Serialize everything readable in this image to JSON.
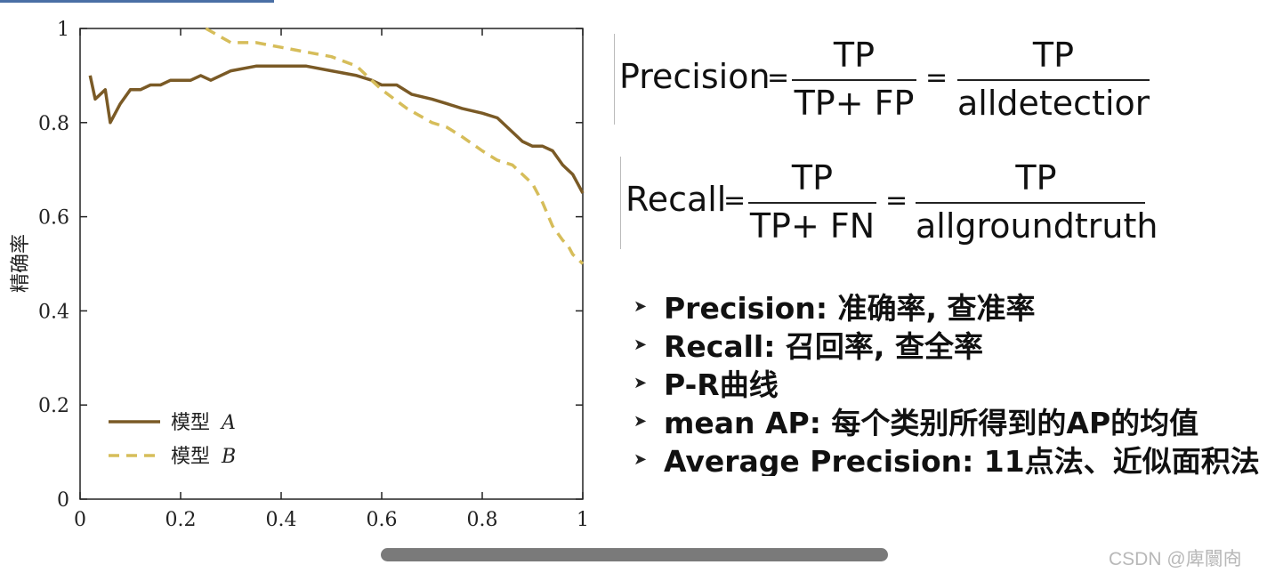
{
  "chart_data": {
    "type": "line",
    "xlabel": "",
    "ylabel": "精确率",
    "xlim": [
      0,
      1
    ],
    "ylim": [
      0,
      1
    ],
    "xticks": [
      "0",
      "0.2",
      "0.4",
      "0.6",
      "0.8",
      "1"
    ],
    "xtick_values": [
      0,
      0.2,
      0.4,
      0.6,
      0.8,
      1
    ],
    "yticks": [
      "0",
      "0.2",
      "0.4",
      "0.6",
      "0.8",
      "1"
    ],
    "ytick_values": [
      0,
      0.2,
      0.4,
      0.6,
      0.8,
      1
    ],
    "legend_position": "bottom-left",
    "series": [
      {
        "name": "模型 A",
        "style": "solid",
        "color": "#7a5a26",
        "x": [
          0.02,
          0.03,
          0.05,
          0.06,
          0.08,
          0.1,
          0.12,
          0.14,
          0.16,
          0.18,
          0.2,
          0.22,
          0.24,
          0.26,
          0.3,
          0.35,
          0.4,
          0.45,
          0.5,
          0.55,
          0.58,
          0.6,
          0.63,
          0.66,
          0.7,
          0.73,
          0.76,
          0.8,
          0.83,
          0.86,
          0.88,
          0.9,
          0.92,
          0.94,
          0.96,
          0.97,
          0.98,
          0.99,
          1.0
        ],
        "y": [
          0.9,
          0.85,
          0.87,
          0.8,
          0.84,
          0.87,
          0.87,
          0.88,
          0.88,
          0.89,
          0.89,
          0.89,
          0.9,
          0.89,
          0.91,
          0.92,
          0.92,
          0.92,
          0.91,
          0.9,
          0.89,
          0.88,
          0.88,
          0.86,
          0.85,
          0.84,
          0.83,
          0.82,
          0.81,
          0.78,
          0.76,
          0.75,
          0.75,
          0.74,
          0.71,
          0.7,
          0.69,
          0.67,
          0.65
        ]
      },
      {
        "name": "模型 B",
        "style": "dashed",
        "color": "#d6bd5a",
        "x": [
          0.25,
          0.3,
          0.35,
          0.4,
          0.45,
          0.5,
          0.55,
          0.57,
          0.6,
          0.65,
          0.7,
          0.73,
          0.76,
          0.8,
          0.83,
          0.86,
          0.88,
          0.9,
          0.92,
          0.94,
          0.96,
          0.97,
          0.98,
          1.0
        ],
        "y": [
          1.0,
          0.97,
          0.97,
          0.96,
          0.95,
          0.94,
          0.92,
          0.9,
          0.87,
          0.83,
          0.8,
          0.79,
          0.77,
          0.74,
          0.72,
          0.71,
          0.69,
          0.67,
          0.63,
          0.58,
          0.55,
          0.54,
          0.52,
          0.5
        ]
      }
    ]
  },
  "legend": [
    {
      "label": "模型",
      "italic": "A"
    },
    {
      "label": "模型",
      "italic": "B"
    }
  ],
  "formulas": {
    "precision": {
      "lhs": "Precision",
      "eq": "=",
      "num1": "TP",
      "den1": "TP+ FP",
      "eq2": "=",
      "num2": "TP",
      "den2": "alldetections"
    },
    "recall": {
      "lhs": "Recall",
      "eq": "=",
      "num1": "TP",
      "den1": "TP+ FN",
      "eq2": "=",
      "num2": "TP",
      "den2": "allgroundtruths"
    }
  },
  "bullets": [
    "Precision: 准确率, 查准率",
    "Recall: 召回率, 查全率",
    "P-R曲线",
    "mean AP: 每个类别所得到的AP的均值",
    "Average Precision: 11点法、近似面积法"
  ],
  "bullet_icon": "arrow-bullet-icon",
  "watermark": "CSDN @庳闤㕯"
}
